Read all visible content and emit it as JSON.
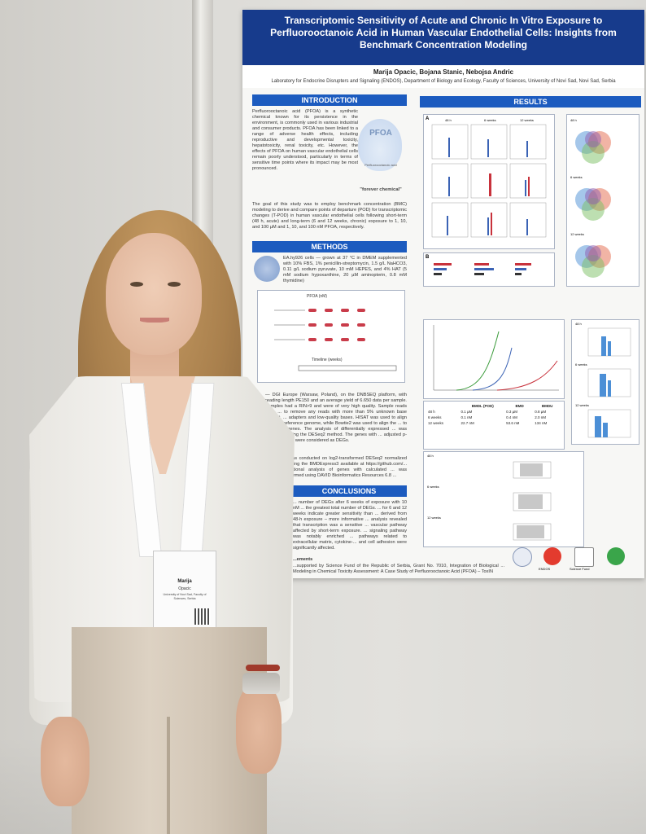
{
  "poster": {
    "title": "Transcriptomic Sensitivity of Acute and Chronic In Vitro Exposure to Perfluorooctanoic Acid in Human Vascular Endothelial Cells: Insights from Benchmark Concentration Modeling",
    "authors": "Marija Opacic, Bojana Stanic, Nebojsa Andric",
    "affiliation": "Laboratory for Endocrine Disrupters and Signaling (ENDOS), Department of Biology and Ecology, Faculty of Sciences, University of Novi Sad, Novi Sad, Serbia",
    "sections": {
      "introduction": "INTRODUCTION",
      "methods": "METHODS",
      "conclusions": "CONCLUSIONS",
      "results": "RESULTS"
    },
    "intro_text": "Perfluorooctanoic acid (PFOA) is a synthetic chemical known for its persistence in the environment, is commonly used in various industrial and consumer products. PFOA has been linked to a range of adverse health effects, including reproductive and developmental toxicity, hepatotoxicity, renal toxicity, etc. However, the effects of PFOA on human vascular endothelial cells remain poorly understood, particularly in terms of sensitive time points where its impact may be most pronounced.",
    "goal_text": "The goal of this study was to employ benchmark concentration (BMC) modeling to derive and compare points of departure (POD) for transcriptomic changes (T-POD) in human vascular endothelial cells following short-term (48 h, acute) and long-term (6 and 12 weeks, chronic) exposure to 1, 10, and 100 µM and 1, 10, and 100 nM PFOA, respectively.",
    "pfoa_label": "PFOA",
    "pfoa_sub": "Perfluorooctanoic acid",
    "forever": "\"forever chemical\"",
    "methods_text": "EA.hy926 cells — grown at 37 °C in DMEM supplemented with 10% FBS, 1% penicillin-streptomycin, 1.5 g/L NaHCO3, 0.11 g/L sodium pyruvate, 10 mM HEPES, and 4% HAT (5 mM sodium hypoxanthine, 20 µM aminopterin, 0.8 mM thymidine)",
    "methods_text2": "— DGI Europe (Warsaw, Poland), on the DNBSEQ platform, with reading length PE150 and an average yield of 6.650 data per sample. Samples had a RIN>9 and were of very high quality. Sample reads were ... to remove any reads with more than 5% unknown base content, ... adapters and low-quality bases. HISAT was used to align the ... to reference genome, while Bowtie2 was used to align the ... to reference genes. The analysis of differentially expressed ... was performed using the DESeq2 method. The genes with ... adjusted p-value of <0.05 were considered as DEGs.",
    "methods_text3": "... was conducted on log2-transformed DESeq2 normalized ... using the BMDExpress3 available at https://github.com/... Functional analysis of genes with calculated ... was performed using DAVID Bioinformatics Resources 6.8 ...",
    "pfoa_axis": "PFOA (nM)",
    "timeline": "Timeline (weeks)",
    "conclusions_text": "... number of DEGs after 6 weeks of exposure with 10 nM ... the greatest total number of DEGs. ... for 6 and 12 weeks indicate greater sensitivity than ... derived from 48-h exposure – more informative ... analysis revealed that transcription was a sensitive ... vascular pathway affected by short-term exposure. ... signaling pathway was notably enriched ... pathways related to extracellular matrix, cytokine-... and cell adhesion were significantly affected.",
    "ack_title": "...ements",
    "ack_text": "...supported by Science Fund of the Republic of Serbia, Grant No. 7010, Integration of Biological ... Modeling in Chemical Toxicity Assessment: A Case Study of Perfluorooctanoic Acid (PFOA) – ToxIN",
    "results_labels": {
      "panel_a": "A",
      "panel_b": "B",
      "t48": "48 h",
      "w6": "6 weeks",
      "w12": "12 weeks"
    },
    "table": {
      "headers": [
        "",
        "BMDL (POD)",
        "BMD",
        "BMDU"
      ],
      "rows": [
        [
          "48 h",
          "0.1 µM",
          "0.3 µM",
          "0.8 µM"
        ],
        [
          "6 weeks",
          "0.1 nM",
          "0.4 nM",
          "2.0 nM"
        ],
        [
          "12 weeks",
          "22.7 nM",
          "53.6 nM",
          "134 nM"
        ]
      ]
    },
    "logos": {
      "endos": "ENDOS",
      "fund": "Science Fund"
    }
  },
  "badge": {
    "first_name": "Marija",
    "last_name": "Opacic",
    "org": "University of Novi Sad, Faculty of Sciences, Serbia"
  },
  "colors": {
    "poster_title_band": "#173b8c",
    "section_header": "#1c5bbf"
  }
}
